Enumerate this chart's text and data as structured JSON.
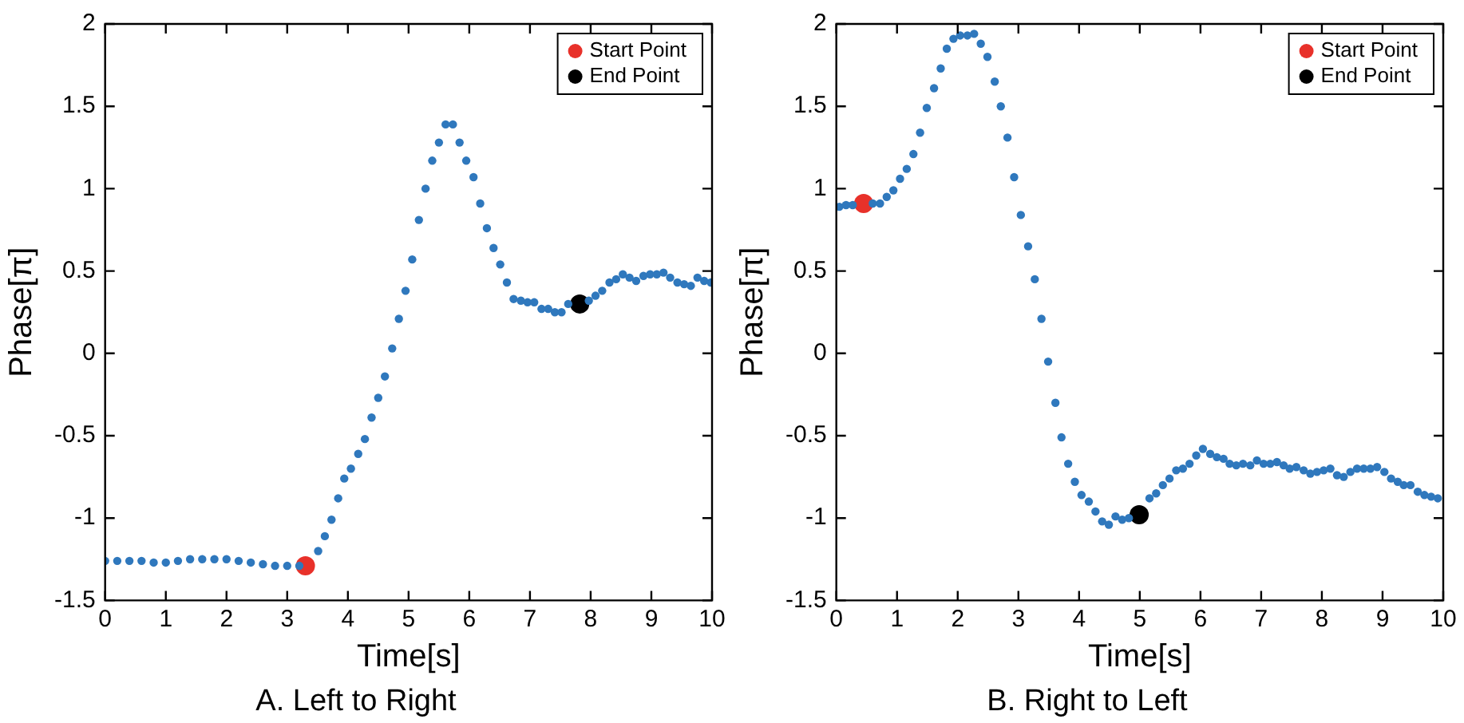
{
  "chart_data": [
    {
      "type": "scatter",
      "title": "A. Left to Right",
      "xlabel": "Time[s]",
      "ylabel": "Phase[π]",
      "xlim": [
        0,
        10
      ],
      "ylim": [
        -1.5,
        2
      ],
      "xticks": [
        0,
        1,
        2,
        3,
        4,
        5,
        6,
        7,
        8,
        9,
        10
      ],
      "yticks": [
        -1.5,
        -1,
        -0.5,
        0,
        0.5,
        1,
        1.5,
        2
      ],
      "grid": false,
      "legend": "top right",
      "marker": "circle",
      "series": [
        {
          "color": "#2f78bd",
          "x": [
            0,
            0.2,
            0.4,
            0.6,
            0.8,
            1.0,
            1.2,
            1.4,
            1.6,
            1.8,
            2.0,
            2.2,
            2.4,
            2.6,
            2.8,
            3.0,
            3.2,
            3.51,
            3.62,
            3.73,
            3.84,
            3.94,
            4.05,
            4.17,
            4.28,
            4.39,
            4.5,
            4.61,
            4.73,
            4.84,
            4.95,
            5.06,
            5.17,
            5.28,
            5.39,
            5.5,
            5.61,
            5.73,
            5.84,
            5.95,
            6.07,
            6.18,
            6.29,
            6.4,
            6.51,
            6.62,
            6.73,
            6.85,
            6.96,
            7.07,
            7.19,
            7.3,
            7.41,
            7.52,
            7.63,
            7.97,
            8.08,
            8.19,
            8.31,
            8.42,
            8.53,
            8.64,
            8.75,
            8.87,
            8.98,
            9.09,
            9.2,
            9.31,
            9.43,
            9.54,
            9.65,
            9.76,
            9.87,
            9.98
          ],
          "values": [
            -1.26,
            -1.26,
            -1.26,
            -1.26,
            -1.27,
            -1.27,
            -1.26,
            -1.25,
            -1.25,
            -1.25,
            -1.25,
            -1.26,
            -1.27,
            -1.28,
            -1.29,
            -1.29,
            -1.29,
            -1.2,
            -1.11,
            -1.01,
            -0.88,
            -0.76,
            -0.7,
            -0.61,
            -0.52,
            -0.39,
            -0.27,
            -0.14,
            0.03,
            0.21,
            0.38,
            0.57,
            0.81,
            1.0,
            1.17,
            1.28,
            1.39,
            1.39,
            1.28,
            1.17,
            1.07,
            0.91,
            0.76,
            0.64,
            0.54,
            0.43,
            0.33,
            0.32,
            0.31,
            0.31,
            0.27,
            0.27,
            0.25,
            0.25,
            0.3,
            0.32,
            0.35,
            0.38,
            0.43,
            0.45,
            0.48,
            0.46,
            0.44,
            0.47,
            0.48,
            0.48,
            0.49,
            0.46,
            0.43,
            0.42,
            0.41,
            0.46,
            0.44,
            0.43
          ]
        },
        {
          "name": "Start Point",
          "color": "#e8312a",
          "x": [
            3.3
          ],
          "values": [
            -1.29
          ]
        },
        {
          "name": "End Point",
          "color": "#000000",
          "x": [
            7.82
          ],
          "values": [
            0.3
          ]
        }
      ]
    },
    {
      "type": "scatter",
      "title": "B. Right to Left",
      "xlabel": "Time[s]",
      "ylabel": "Phase[π]",
      "xlim": [
        0,
        10
      ],
      "ylim": [
        -1.5,
        2
      ],
      "xticks": [
        0,
        1,
        2,
        3,
        4,
        5,
        6,
        7,
        8,
        9,
        10
      ],
      "yticks": [
        -1.5,
        -1,
        -0.5,
        0,
        0.5,
        1,
        1.5,
        2
      ],
      "grid": false,
      "legend": "top right",
      "marker": "circle",
      "series": [
        {
          "color": "#2f78bd",
          "x": [
            0.05,
            0.16,
            0.27,
            0.6,
            0.72,
            0.83,
            0.94,
            1.05,
            1.16,
            1.27,
            1.38,
            1.49,
            1.61,
            1.72,
            1.82,
            1.93,
            2.04,
            2.16,
            2.27,
            2.38,
            2.49,
            2.61,
            2.71,
            2.82,
            2.93,
            3.04,
            3.16,
            3.27,
            3.38,
            3.49,
            3.61,
            3.71,
            3.82,
            3.93,
            4.04,
            4.16,
            4.27,
            4.38,
            4.49,
            4.6,
            4.71,
            4.82,
            5.16,
            5.27,
            5.38,
            5.49,
            5.6,
            5.71,
            5.82,
            5.93,
            6.04,
            6.16,
            6.27,
            6.38,
            6.48,
            6.59,
            6.7,
            6.82,
            6.93,
            7.04,
            7.15,
            7.26,
            7.37,
            7.47,
            7.58,
            7.7,
            7.81,
            7.92,
            8.03,
            8.14,
            8.25,
            8.36,
            8.47,
            8.58,
            8.69,
            8.8,
            8.91,
            9.03,
            9.14,
            9.25,
            9.35,
            9.46,
            9.58,
            9.69,
            9.8,
            9.91
          ],
          "values": [
            0.89,
            0.9,
            0.9,
            0.91,
            0.91,
            0.95,
            0.99,
            1.06,
            1.12,
            1.21,
            1.34,
            1.49,
            1.61,
            1.73,
            1.85,
            1.91,
            1.93,
            1.93,
            1.94,
            1.88,
            1.8,
            1.65,
            1.5,
            1.31,
            1.07,
            0.84,
            0.65,
            0.45,
            0.21,
            -0.05,
            -0.3,
            -0.51,
            -0.67,
            -0.78,
            -0.86,
            -0.9,
            -0.96,
            -1.02,
            -1.04,
            -0.99,
            -1.01,
            -1.0,
            -0.88,
            -0.85,
            -0.8,
            -0.76,
            -0.71,
            -0.7,
            -0.67,
            -0.62,
            -0.58,
            -0.61,
            -0.63,
            -0.64,
            -0.67,
            -0.68,
            -0.67,
            -0.68,
            -0.65,
            -0.67,
            -0.67,
            -0.66,
            -0.68,
            -0.7,
            -0.69,
            -0.71,
            -0.73,
            -0.72,
            -0.71,
            -0.7,
            -0.74,
            -0.75,
            -0.72,
            -0.7,
            -0.7,
            -0.7,
            -0.69,
            -0.72,
            -0.76,
            -0.78,
            -0.8,
            -0.8,
            -0.84,
            -0.86,
            -0.87,
            -0.88
          ]
        },
        {
          "name": "Start Point",
          "color": "#e8312a",
          "x": [
            0.45
          ],
          "values": [
            0.91
          ]
        },
        {
          "name": "End Point",
          "color": "#000000",
          "x": [
            4.99
          ],
          "values": [
            -0.98
          ]
        }
      ]
    }
  ]
}
